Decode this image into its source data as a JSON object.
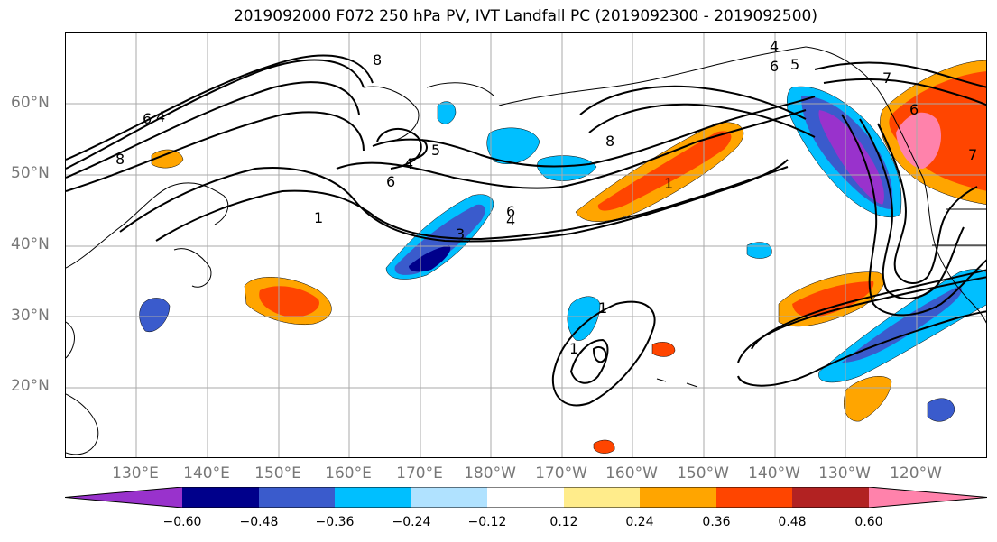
{
  "title": "2019092000 F072 250 hPa PV, IVT Landfall PC (2019092300 - 2019092500)",
  "lat_labels": [
    "60°N",
    "50°N",
    "40°N",
    "30°N",
    "20°N"
  ],
  "lon_labels": [
    "130°E",
    "140°E",
    "150°E",
    "160°E",
    "170°E",
    "180°W",
    "170°W",
    "160°W",
    "150°W",
    "140°W",
    "130°W",
    "120°W"
  ],
  "colorbar": {
    "ticks": [
      "−0.60",
      "−0.48",
      "−0.36",
      "−0.24",
      "−0.12",
      "0.12",
      "0.24",
      "0.36",
      "0.48",
      "0.60"
    ],
    "colors": [
      "#9932cc",
      "#00008b",
      "#3a5bcc",
      "#00bfff",
      "#b0e2ff",
      "#ffffff",
      "#ffec8b",
      "#ffa500",
      "#ff4500",
      "#b22222",
      "#ff82ab"
    ]
  },
  "contour_labels": [
    "8",
    "6",
    "4",
    "1",
    "8",
    "6",
    "5",
    "4",
    "3",
    "6",
    "4",
    "1",
    "8",
    "4",
    "5",
    "6",
    "7",
    "6",
    "7",
    "1",
    "1"
  ],
  "colors": {
    "grid": "#aaaaaa",
    "axis_label": "#777777"
  }
}
